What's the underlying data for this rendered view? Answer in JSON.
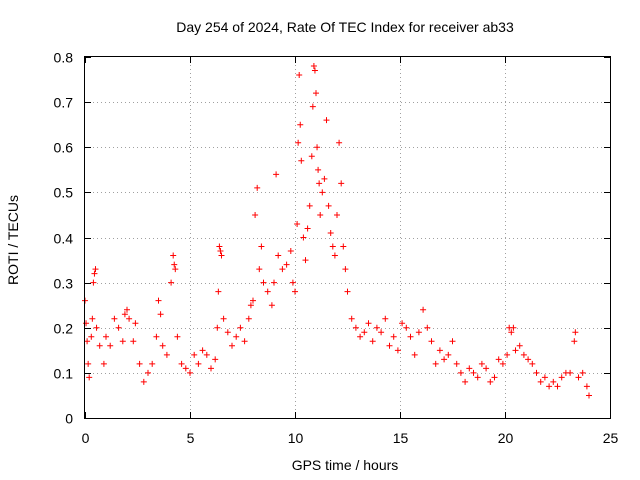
{
  "chart_data": {
    "type": "scatter",
    "title": "Day 254 of 2024, Rate Of TEC Index for receiver ab33",
    "xlabel": "GPS time / hours",
    "ylabel": "ROTI / TECUs",
    "xlim": [
      0,
      25
    ],
    "ylim": [
      0,
      0.8
    ],
    "xticks": [
      0,
      5,
      10,
      15,
      20,
      25
    ],
    "yticks": [
      0,
      0.1,
      0.2,
      0.3,
      0.4,
      0.5,
      0.6,
      0.7,
      0.8
    ],
    "xtick_labels": [
      "0",
      "5",
      "10",
      "15",
      "20",
      "25"
    ],
    "ytick_labels": [
      "0",
      "0.1",
      "0.2",
      "0.3",
      "0.4",
      "0.5",
      "0.6",
      "0.7",
      "0.8"
    ],
    "grid": true,
    "marker": "+",
    "color": "#ff0000",
    "series": [
      {
        "values": [
          [
            0.0,
            0.26
          ],
          [
            0.05,
            0.21
          ],
          [
            0.1,
            0.17
          ],
          [
            0.15,
            0.12
          ],
          [
            0.2,
            0.09
          ],
          [
            0.3,
            0.18
          ],
          [
            0.35,
            0.22
          ],
          [
            0.4,
            0.3
          ],
          [
            0.45,
            0.32
          ],
          [
            0.5,
            0.33
          ],
          [
            0.55,
            0.2
          ],
          [
            0.7,
            0.16
          ],
          [
            0.9,
            0.12
          ],
          [
            1.0,
            0.18
          ],
          [
            1.2,
            0.16
          ],
          [
            1.4,
            0.22
          ],
          [
            1.6,
            0.2
          ],
          [
            1.8,
            0.17
          ],
          [
            1.9,
            0.23
          ],
          [
            2.0,
            0.24
          ],
          [
            2.1,
            0.22
          ],
          [
            2.3,
            0.17
          ],
          [
            2.4,
            0.21
          ],
          [
            2.6,
            0.12
          ],
          [
            2.8,
            0.08
          ],
          [
            3.0,
            0.1
          ],
          [
            3.2,
            0.12
          ],
          [
            3.4,
            0.18
          ],
          [
            3.5,
            0.26
          ],
          [
            3.6,
            0.23
          ],
          [
            3.7,
            0.16
          ],
          [
            3.9,
            0.14
          ],
          [
            4.1,
            0.3
          ],
          [
            4.2,
            0.36
          ],
          [
            4.25,
            0.34
          ],
          [
            4.3,
            0.33
          ],
          [
            4.4,
            0.18
          ],
          [
            4.6,
            0.12
          ],
          [
            4.8,
            0.11
          ],
          [
            5.0,
            0.1
          ],
          [
            5.2,
            0.14
          ],
          [
            5.4,
            0.12
          ],
          [
            5.6,
            0.15
          ],
          [
            5.8,
            0.14
          ],
          [
            6.0,
            0.11
          ],
          [
            6.2,
            0.13
          ],
          [
            6.3,
            0.2
          ],
          [
            6.35,
            0.28
          ],
          [
            6.4,
            0.38
          ],
          [
            6.45,
            0.37
          ],
          [
            6.5,
            0.36
          ],
          [
            6.6,
            0.22
          ],
          [
            6.8,
            0.19
          ],
          [
            7.0,
            0.16
          ],
          [
            7.2,
            0.18
          ],
          [
            7.4,
            0.2
          ],
          [
            7.6,
            0.17
          ],
          [
            7.8,
            0.22
          ],
          [
            7.9,
            0.25
          ],
          [
            8.0,
            0.26
          ],
          [
            8.1,
            0.45
          ],
          [
            8.2,
            0.51
          ],
          [
            8.3,
            0.33
          ],
          [
            8.4,
            0.38
          ],
          [
            8.5,
            0.3
          ],
          [
            8.7,
            0.28
          ],
          [
            8.9,
            0.25
          ],
          [
            9.0,
            0.3
          ],
          [
            9.1,
            0.54
          ],
          [
            9.2,
            0.36
          ],
          [
            9.4,
            0.33
          ],
          [
            9.6,
            0.34
          ],
          [
            9.8,
            0.37
          ],
          [
            9.9,
            0.3
          ],
          [
            10.0,
            0.28
          ],
          [
            10.1,
            0.43
          ],
          [
            10.15,
            0.61
          ],
          [
            10.2,
            0.76
          ],
          [
            10.25,
            0.65
          ],
          [
            10.3,
            0.57
          ],
          [
            10.4,
            0.4
          ],
          [
            10.5,
            0.35
          ],
          [
            10.6,
            0.42
          ],
          [
            10.7,
            0.47
          ],
          [
            10.8,
            0.58
          ],
          [
            10.85,
            0.69
          ],
          [
            10.9,
            0.78
          ],
          [
            10.95,
            0.77
          ],
          [
            11.0,
            0.72
          ],
          [
            11.05,
            0.6
          ],
          [
            11.1,
            0.55
          ],
          [
            11.15,
            0.52
          ],
          [
            11.2,
            0.45
          ],
          [
            11.3,
            0.5
          ],
          [
            11.4,
            0.53
          ],
          [
            11.5,
            0.66
          ],
          [
            11.6,
            0.47
          ],
          [
            11.7,
            0.41
          ],
          [
            11.8,
            0.38
          ],
          [
            11.9,
            0.36
          ],
          [
            12.0,
            0.45
          ],
          [
            12.1,
            0.61
          ],
          [
            12.2,
            0.52
          ],
          [
            12.3,
            0.38
          ],
          [
            12.4,
            0.33
          ],
          [
            12.5,
            0.28
          ],
          [
            12.7,
            0.22
          ],
          [
            12.9,
            0.2
          ],
          [
            13.1,
            0.18
          ],
          [
            13.3,
            0.19
          ],
          [
            13.5,
            0.21
          ],
          [
            13.7,
            0.17
          ],
          [
            13.9,
            0.2
          ],
          [
            14.1,
            0.19
          ],
          [
            14.3,
            0.22
          ],
          [
            14.5,
            0.16
          ],
          [
            14.7,
            0.18
          ],
          [
            14.9,
            0.15
          ],
          [
            15.1,
            0.21
          ],
          [
            15.3,
            0.2
          ],
          [
            15.5,
            0.18
          ],
          [
            15.7,
            0.14
          ],
          [
            15.9,
            0.19
          ],
          [
            16.1,
            0.24
          ],
          [
            16.3,
            0.2
          ],
          [
            16.5,
            0.17
          ],
          [
            16.7,
            0.12
          ],
          [
            16.9,
            0.15
          ],
          [
            17.1,
            0.13
          ],
          [
            17.3,
            0.14
          ],
          [
            17.5,
            0.17
          ],
          [
            17.7,
            0.12
          ],
          [
            17.9,
            0.1
          ],
          [
            18.1,
            0.08
          ],
          [
            18.3,
            0.11
          ],
          [
            18.5,
            0.1
          ],
          [
            18.7,
            0.09
          ],
          [
            18.9,
            0.12
          ],
          [
            19.1,
            0.11
          ],
          [
            19.3,
            0.08
          ],
          [
            19.5,
            0.09
          ],
          [
            19.7,
            0.13
          ],
          [
            19.9,
            0.12
          ],
          [
            20.1,
            0.14
          ],
          [
            20.2,
            0.2
          ],
          [
            20.3,
            0.19
          ],
          [
            20.4,
            0.2
          ],
          [
            20.5,
            0.15
          ],
          [
            20.7,
            0.16
          ],
          [
            20.9,
            0.14
          ],
          [
            21.1,
            0.13
          ],
          [
            21.3,
            0.12
          ],
          [
            21.5,
            0.1
          ],
          [
            21.7,
            0.08
          ],
          [
            21.9,
            0.09
          ],
          [
            22.1,
            0.07
          ],
          [
            22.3,
            0.08
          ],
          [
            22.5,
            0.07
          ],
          [
            22.7,
            0.09
          ],
          [
            22.9,
            0.1
          ],
          [
            23.1,
            0.1
          ],
          [
            23.3,
            0.17
          ],
          [
            23.35,
            0.19
          ],
          [
            23.5,
            0.09
          ],
          [
            23.7,
            0.1
          ],
          [
            23.9,
            0.07
          ],
          [
            24.0,
            0.05
          ]
        ]
      }
    ]
  }
}
